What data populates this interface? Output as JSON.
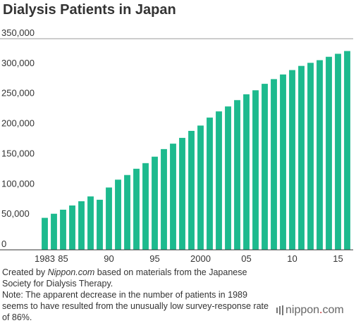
{
  "chart_data": {
    "type": "bar",
    "title": "Dialysis Patients in Japan",
    "xlabel": "",
    "ylabel": "",
    "ylim": [
      0,
      350000
    ],
    "yticks": [
      0,
      50000,
      100000,
      150000,
      200000,
      250000,
      300000,
      350000
    ],
    "ytick_labels": [
      "0",
      "50,000",
      "100,000",
      "150,000",
      "200,000",
      "250,000",
      "300,000",
      "350,000"
    ],
    "categories": [
      1983,
      1984,
      1985,
      1986,
      1987,
      1988,
      1989,
      1990,
      1991,
      1992,
      1993,
      1994,
      1995,
      1996,
      1997,
      1998,
      1999,
      2000,
      2001,
      2002,
      2003,
      2004,
      2005,
      2006,
      2007,
      2008,
      2009,
      2010,
      2011,
      2012,
      2013,
      2014,
      2015,
      2016
    ],
    "xtick_labels": [
      {
        "category": 1983,
        "label": "1983"
      },
      {
        "category": 1985,
        "label": "85"
      },
      {
        "category": 1990,
        "label": "90"
      },
      {
        "category": 1995,
        "label": "95"
      },
      {
        "category": 2000,
        "label": "2000"
      },
      {
        "category": 2005,
        "label": "05"
      },
      {
        "category": 2010,
        "label": "10"
      },
      {
        "category": 2015,
        "label": "15"
      }
    ],
    "values": [
      53000,
      59800,
      66500,
      73500,
      80500,
      88500,
      83000,
      103300,
      116300,
      124000,
      134400,
      143700,
      154400,
      167000,
      176000,
      185600,
      197200,
      206000,
      219200,
      229500,
      237700,
      248200,
      257800,
      264500,
      275200,
      283000,
      290700,
      298000,
      304900,
      310000,
      314400,
      320000,
      325000,
      329600
    ],
    "grid": false,
    "legend": "none"
  },
  "colors": {
    "bar": "#1dba8e",
    "text": "#333333",
    "axis": "#333333",
    "gridline": "#999999",
    "logo_dot": "#c8161d"
  },
  "notes": {
    "source_prefix": "Created by ",
    "source_name": "Nippon.com",
    "source_suffix": " based on materials from the Japanese Society for Dialysis Therapy.",
    "note": "Note: The apparent decrease in the number of patients in 1989 seems to have resulted from the unusually low survey-response rate of 86%."
  },
  "logo": {
    "word": "nippon",
    "dot": ".",
    "suffix": "com"
  }
}
